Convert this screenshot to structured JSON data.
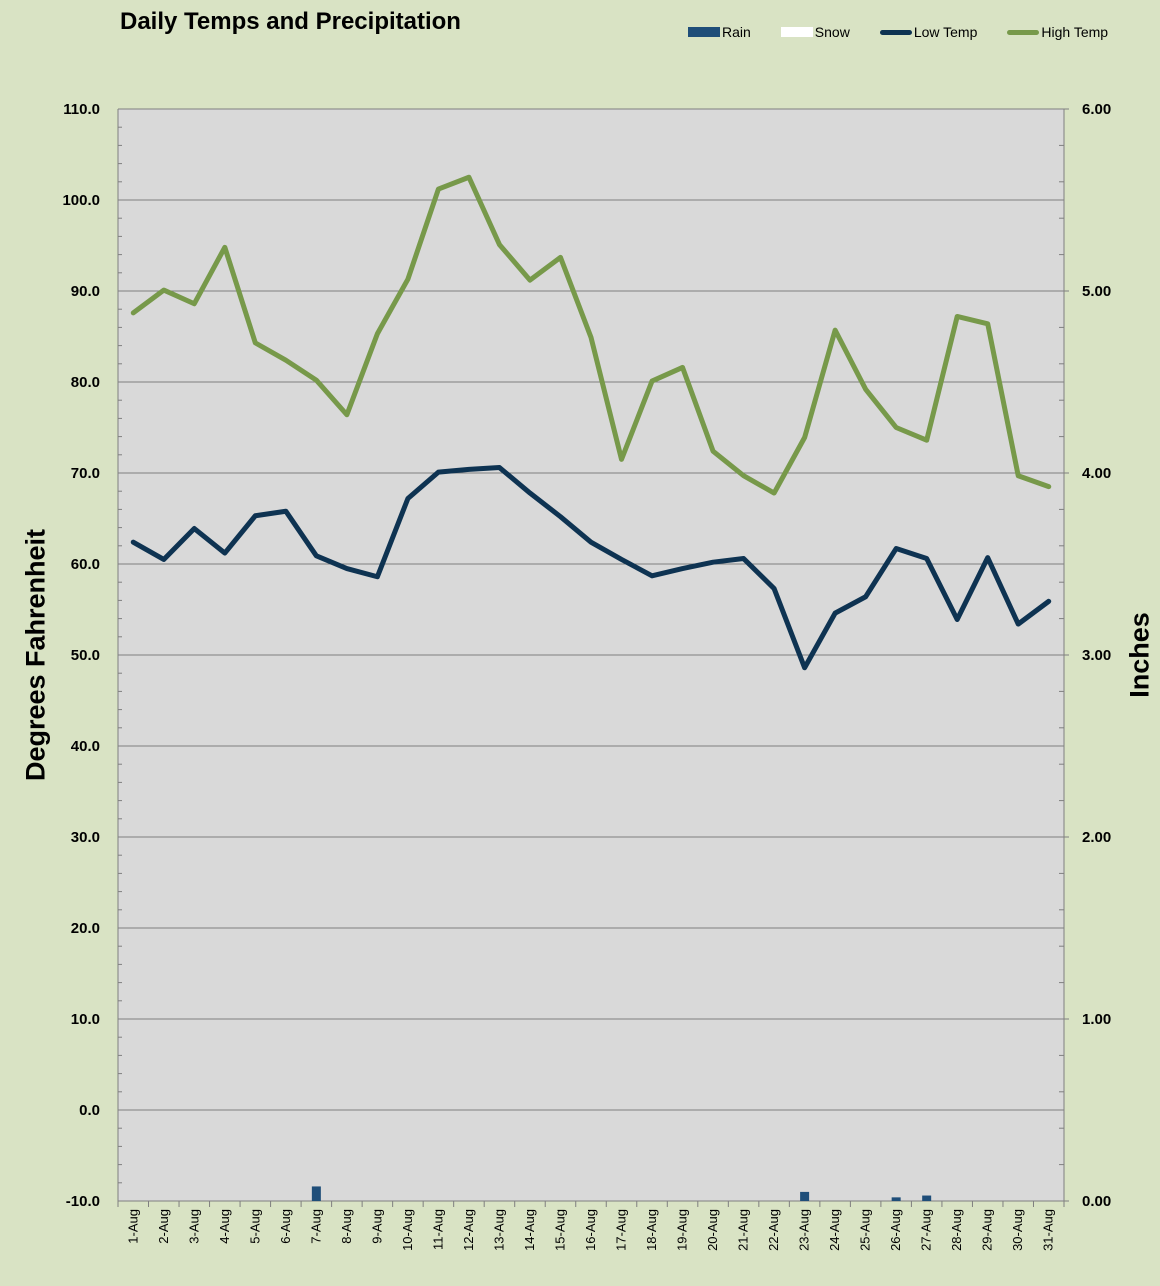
{
  "chart_data": {
    "type": "line",
    "title": "Daily Temps and Precipitation",
    "ylabel": "Degrees Fahrenheit",
    "y2label": "Inches",
    "ylim": [
      -10,
      110
    ],
    "y2lim": [
      0,
      6
    ],
    "yticks": [
      "110.0",
      "100.0",
      "90.0",
      "80.0",
      "70.0",
      "60.0",
      "50.0",
      "40.0",
      "30.0",
      "20.0",
      "10.0",
      "0.0",
      "-10.0"
    ],
    "y2ticks": [
      "6.00",
      "5.00",
      "4.00",
      "3.00",
      "2.00",
      "1.00",
      "0.00"
    ],
    "grid": true,
    "legend_position": "top-right",
    "categories": [
      "1-Aug",
      "2-Aug",
      "3-Aug",
      "4-Aug",
      "5-Aug",
      "6-Aug",
      "7-Aug",
      "8-Aug",
      "9-Aug",
      "10-Aug",
      "11-Aug",
      "12-Aug",
      "13-Aug",
      "14-Aug",
      "15-Aug",
      "16-Aug",
      "17-Aug",
      "18-Aug",
      "19-Aug",
      "20-Aug",
      "21-Aug",
      "22-Aug",
      "23-Aug",
      "24-Aug",
      "25-Aug",
      "26-Aug",
      "27-Aug",
      "28-Aug",
      "29-Aug",
      "30-Aug",
      "31-Aug"
    ],
    "series": [
      {
        "name": "Rain",
        "type": "bar",
        "axis": "right",
        "color": "#1f4e79",
        "values": [
          0,
          0,
          0,
          0,
          0,
          0,
          0.08,
          0,
          0,
          0,
          0,
          0,
          0,
          0,
          0,
          0,
          0,
          0,
          0,
          0,
          0,
          0,
          0.05,
          0,
          0,
          0.02,
          0.03,
          0,
          0,
          0,
          0
        ]
      },
      {
        "name": "Snow",
        "type": "bar",
        "axis": "right",
        "color": "#ffffff",
        "values": [
          0,
          0,
          0,
          0,
          0,
          0,
          0,
          0,
          0,
          0,
          0,
          0,
          0,
          0,
          0,
          0,
          0,
          0,
          0,
          0,
          0,
          0,
          0,
          0,
          0,
          0,
          0,
          0,
          0,
          0,
          0
        ]
      },
      {
        "name": "Low Temp",
        "type": "line",
        "axis": "left",
        "color": "#0e3352",
        "values": [
          62.4,
          60.5,
          63.9,
          61.2,
          65.3,
          65.8,
          60.9,
          59.5,
          58.6,
          67.2,
          70.1,
          70.4,
          70.6,
          67.8,
          65.2,
          62.4,
          60.5,
          58.7,
          59.5,
          60.2,
          60.6,
          57.3,
          48.6,
          54.6,
          56.4,
          61.7,
          60.6,
          53.9,
          60.7,
          53.4,
          55.9
        ]
      },
      {
        "name": "High Temp",
        "type": "line",
        "axis": "left",
        "color": "#77994a",
        "values": [
          87.6,
          90.1,
          88.6,
          94.8,
          84.3,
          82.4,
          80.2,
          76.4,
          85.3,
          91.3,
          101.2,
          102.5,
          95.1,
          91.2,
          93.7,
          84.9,
          71.5,
          80.1,
          81.6,
          72.4,
          69.7,
          67.8,
          73.9,
          85.7,
          79.2,
          75.0,
          73.6,
          87.2,
          86.4,
          69.7,
          68.5
        ]
      }
    ]
  }
}
